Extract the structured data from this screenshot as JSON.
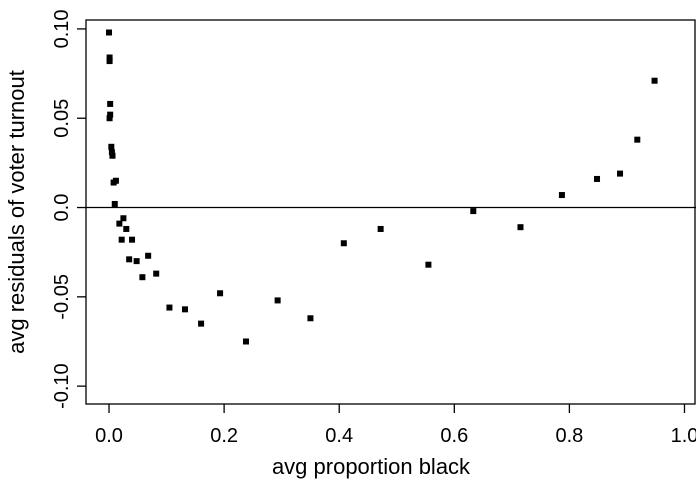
{
  "chart_data": {
    "type": "scatter",
    "title": "",
    "xlabel": "avg proportion black",
    "ylabel": "avg residuals of voter turnout",
    "xlim": [
      -0.04,
      1.02
    ],
    "ylim": [
      -0.11,
      0.105
    ],
    "x_ticks": [
      0.0,
      0.2,
      0.4,
      0.6,
      0.8,
      1.0
    ],
    "x_tick_labels": [
      "0.0",
      "0.2",
      "0.4",
      "0.6",
      "0.8",
      "1.0"
    ],
    "y_ticks": [
      -0.1,
      -0.05,
      0.0,
      0.05,
      0.1
    ],
    "y_tick_labels": [
      "-0.10",
      "-0.05",
      "0.0",
      "0.05",
      "0.10"
    ],
    "reference_line_y": 0.0,
    "grid": false,
    "points": [
      {
        "x": 0.0,
        "y": 0.098
      },
      {
        "x": 0.001,
        "y": 0.084
      },
      {
        "x": 0.001,
        "y": 0.082
      },
      {
        "x": 0.002,
        "y": 0.058
      },
      {
        "x": 0.002,
        "y": 0.052
      },
      {
        "x": 0.001,
        "y": 0.05
      },
      {
        "x": 0.004,
        "y": 0.034
      },
      {
        "x": 0.005,
        "y": 0.031
      },
      {
        "x": 0.006,
        "y": 0.029
      },
      {
        "x": 0.008,
        "y": 0.014
      },
      {
        "x": 0.012,
        "y": 0.015
      },
      {
        "x": 0.01,
        "y": 0.002
      },
      {
        "x": 0.018,
        "y": -0.009
      },
      {
        "x": 0.025,
        "y": -0.006
      },
      {
        "x": 0.03,
        "y": -0.012
      },
      {
        "x": 0.022,
        "y": -0.018
      },
      {
        "x": 0.04,
        "y": -0.018
      },
      {
        "x": 0.035,
        "y": -0.029
      },
      {
        "x": 0.048,
        "y": -0.03
      },
      {
        "x": 0.068,
        "y": -0.027
      },
      {
        "x": 0.058,
        "y": -0.039
      },
      {
        "x": 0.082,
        "y": -0.037
      },
      {
        "x": 0.105,
        "y": -0.056
      },
      {
        "x": 0.132,
        "y": -0.057
      },
      {
        "x": 0.16,
        "y": -0.065
      },
      {
        "x": 0.193,
        "y": -0.048
      },
      {
        "x": 0.238,
        "y": -0.075
      },
      {
        "x": 0.293,
        "y": -0.052
      },
      {
        "x": 0.35,
        "y": -0.062
      },
      {
        "x": 0.408,
        "y": -0.02
      },
      {
        "x": 0.472,
        "y": -0.012
      },
      {
        "x": 0.555,
        "y": -0.032
      },
      {
        "x": 0.633,
        "y": -0.002
      },
      {
        "x": 0.715,
        "y": -0.011
      },
      {
        "x": 0.787,
        "y": 0.007
      },
      {
        "x": 0.848,
        "y": 0.016
      },
      {
        "x": 0.888,
        "y": 0.019
      },
      {
        "x": 0.918,
        "y": 0.038
      },
      {
        "x": 0.948,
        "y": 0.071
      }
    ]
  }
}
